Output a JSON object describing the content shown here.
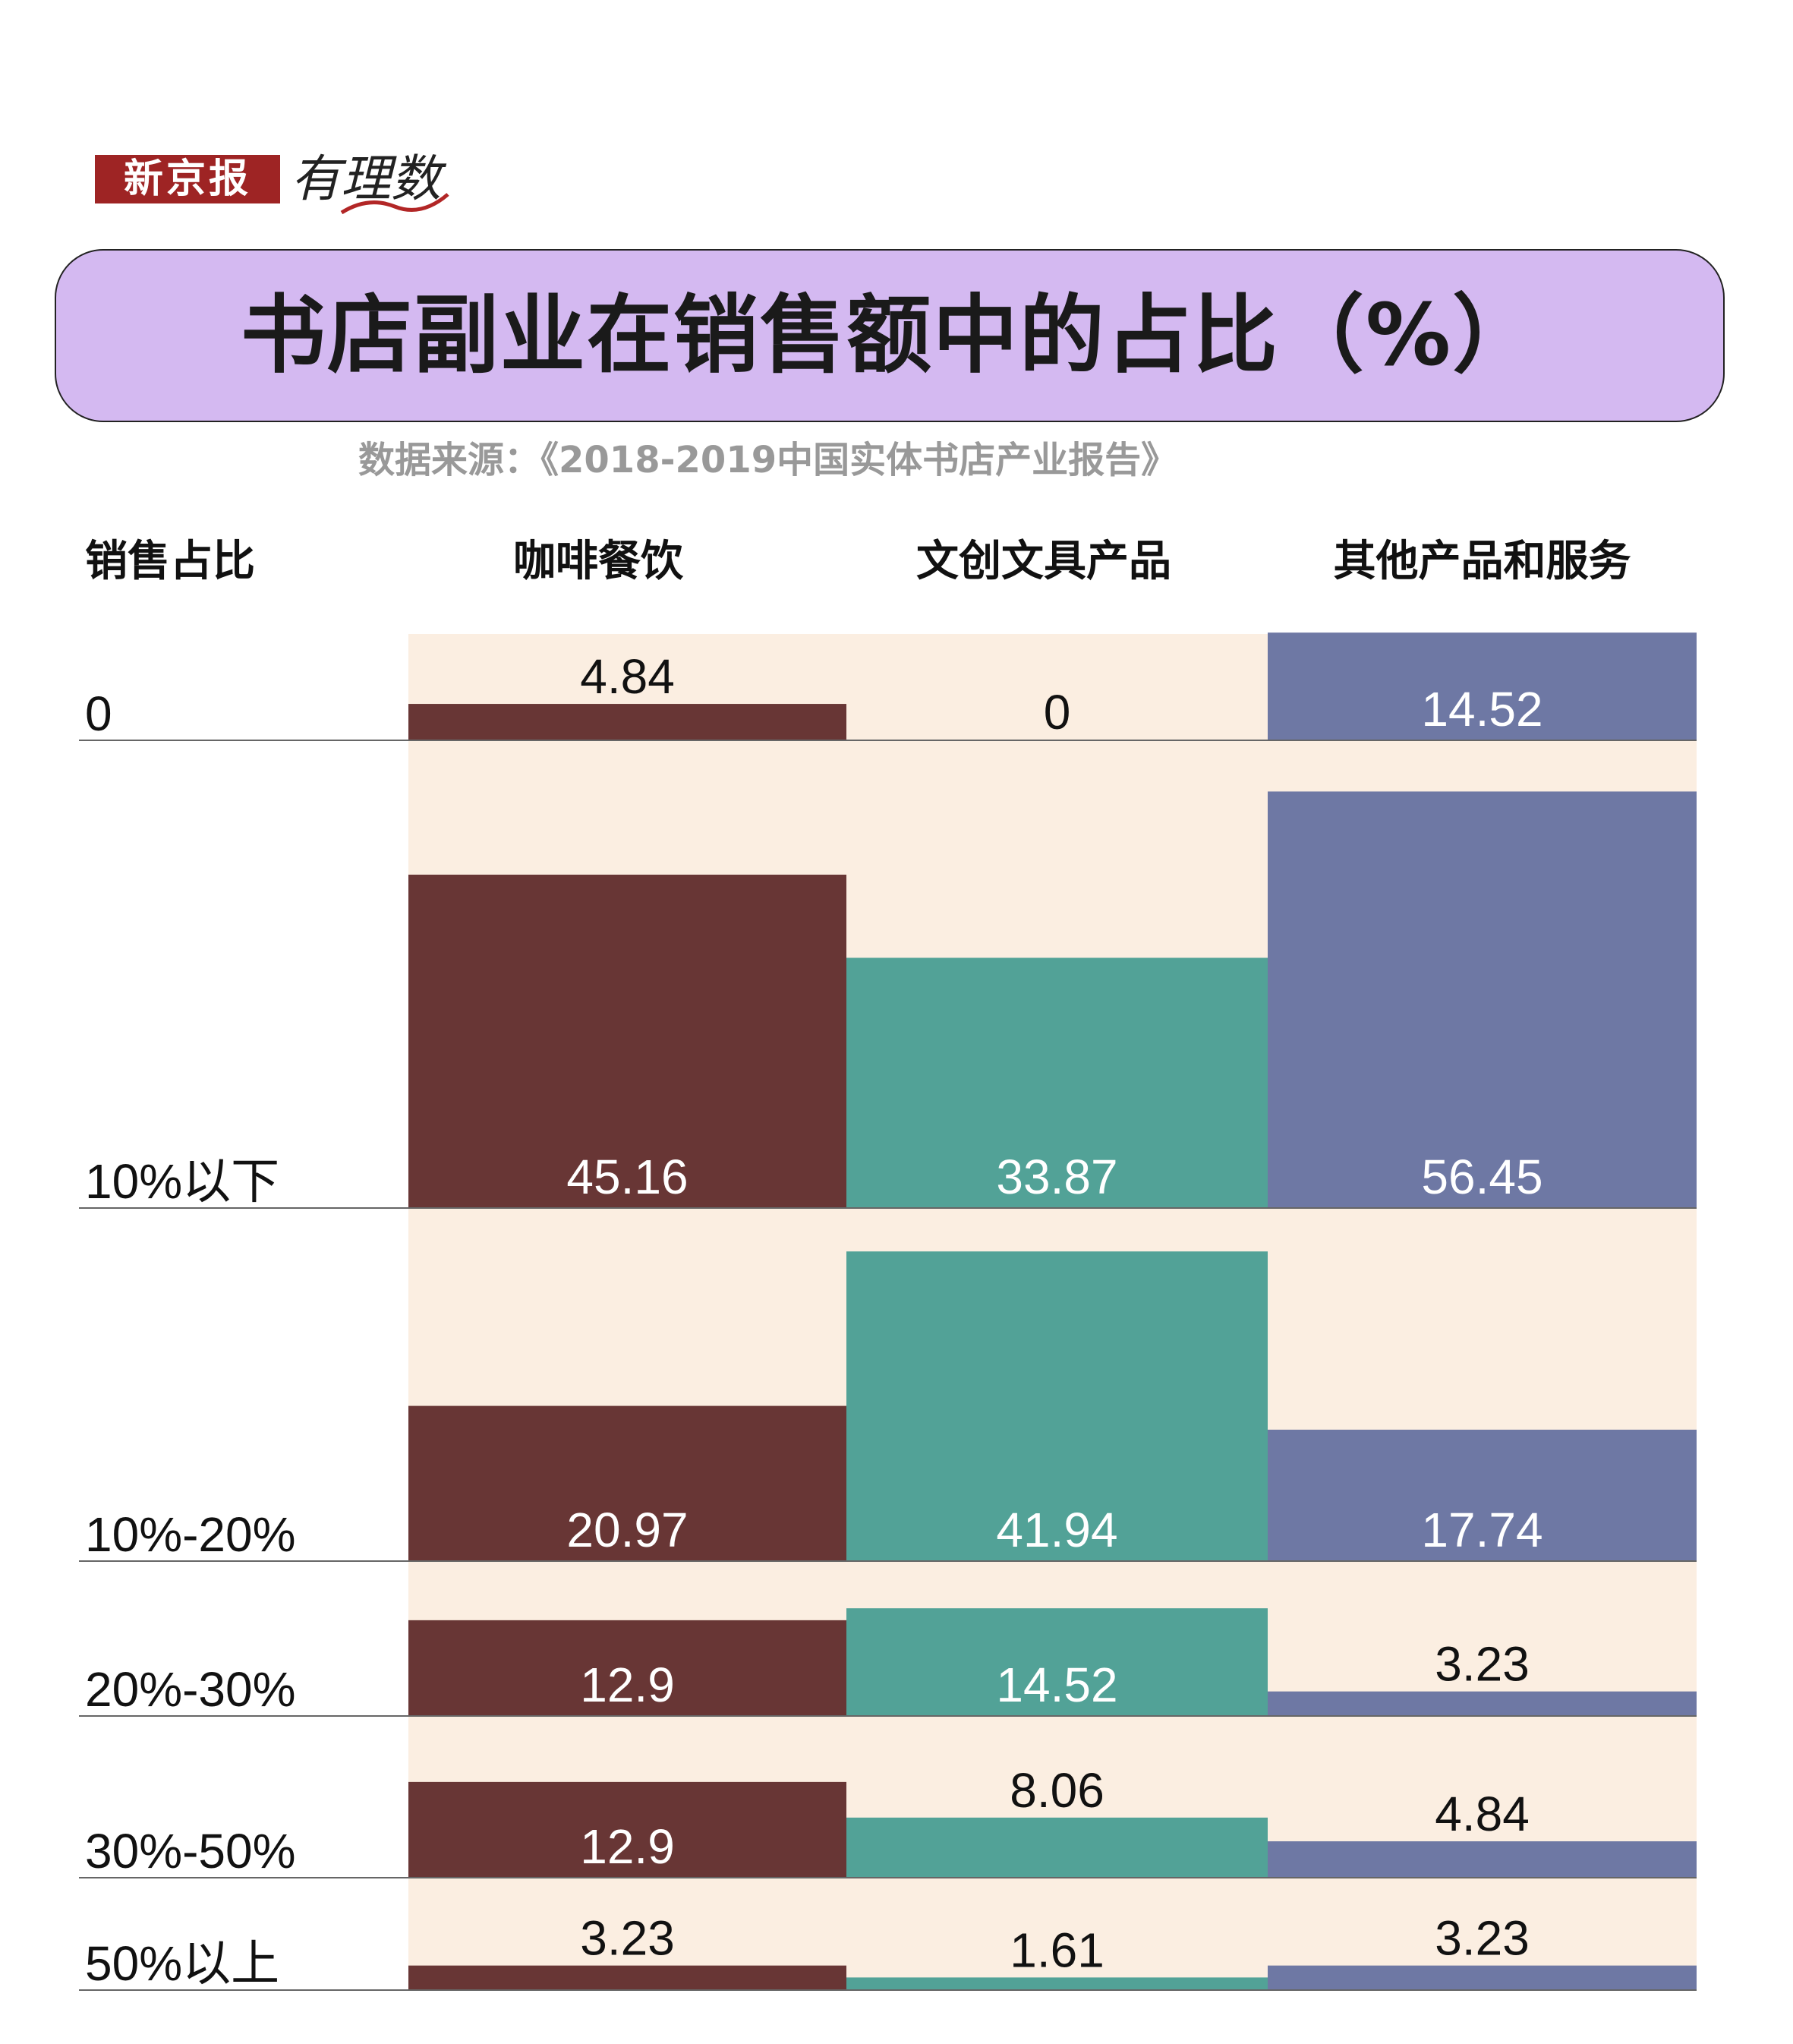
{
  "brand": {
    "name": "新京报",
    "column": "有理数"
  },
  "title": "书店副业在销售额中的占比（%）",
  "source": "数据来源：《2018-2019中国实体书店产业报告》",
  "row_header_label": "销售占比",
  "colors": {
    "background_band": "#fbeee1",
    "coffee": "#683635",
    "stationery": "#52a297",
    "other": "#6e78a4",
    "banner": "#d4b9f1"
  },
  "chart_data": {
    "type": "bar",
    "title": "书店副业在销售额中的占比（%）",
    "categories": [
      "0",
      "10%以下",
      "10%-20%",
      "20%-30%",
      "30%-50%",
      "50%以上"
    ],
    "series": [
      {
        "name": "咖啡餐饮",
        "values": [
          4.84,
          45.16,
          20.97,
          12.9,
          12.9,
          3.23
        ],
        "value_labels": [
          "4.84",
          "45.16",
          "20.97",
          "12.9",
          "12.9",
          "3.23"
        ]
      },
      {
        "name": "文创文具产品",
        "values": [
          0,
          33.87,
          41.94,
          14.52,
          8.06,
          1.61
        ],
        "value_labels": [
          "0",
          "33.87",
          "41.94",
          "14.52",
          "8.06",
          "1.61"
        ]
      },
      {
        "name": "其他产品和服务",
        "values": [
          14.52,
          56.45,
          17.74,
          3.23,
          4.84,
          3.23
        ],
        "value_labels": [
          "14.52",
          "56.45",
          "17.74",
          "3.23",
          "4.84",
          "3.23"
        ]
      }
    ]
  }
}
